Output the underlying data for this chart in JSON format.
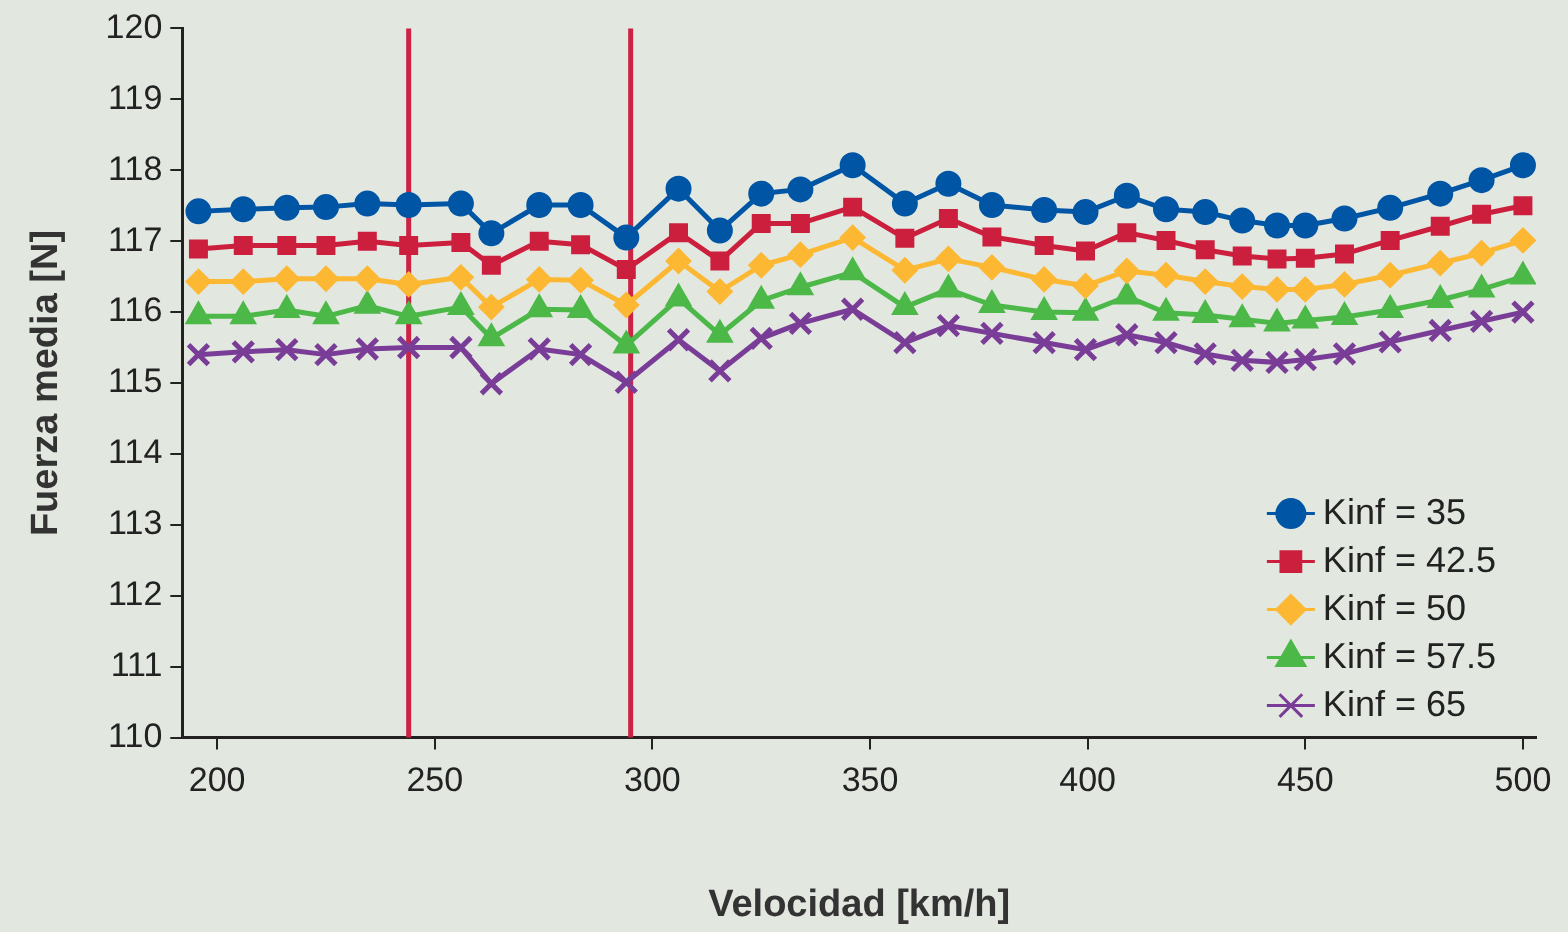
{
  "chart_data": {
    "type": "line",
    "xlabel": "Velocidad [km/h]",
    "ylabel": "Fuerza media [N]",
    "x": [
      195.7,
      206,
      216,
      225,
      234.5,
      244,
      256,
      263,
      274,
      283.5,
      294,
      306,
      315.5,
      325,
      334,
      346,
      358,
      368,
      378,
      390,
      399.5,
      409,
      418,
      427,
      435.5,
      443.5,
      450,
      459,
      469.5,
      481,
      490.5,
      500
    ],
    "xlim": [
      192,
      503
    ],
    "xticks": [
      200,
      250,
      300,
      350,
      400,
      450,
      500
    ],
    "ylim": [
      110,
      120
    ],
    "yticks": [
      110,
      111,
      112,
      113,
      114,
      115,
      116,
      117,
      118,
      119,
      120
    ],
    "grid": false,
    "legend": "bottom right",
    "line_style": "solid",
    "ref_lines": [
      {
        "axis": "x",
        "value": 244,
        "color": "#cc2244"
      },
      {
        "axis": "x",
        "value": 295,
        "color": "#cc2244"
      }
    ],
    "series": [
      {
        "name": "Kinf = 35",
        "color": "#0055a5",
        "marker": "circle",
        "values": [
          117.42,
          117.45,
          117.47,
          117.48,
          117.53,
          117.51,
          117.53,
          117.11,
          117.51,
          117.51,
          117.05,
          117.74,
          117.15,
          117.67,
          117.73,
          118.07,
          117.53,
          117.81,
          117.51,
          117.44,
          117.41,
          117.64,
          117.45,
          117.41,
          117.29,
          117.22,
          117.22,
          117.32,
          117.47,
          117.67,
          117.86,
          118.07
        ]
      },
      {
        "name": "Kinf = 42.5",
        "color": "#cc1f3e",
        "marker": "square",
        "values": [
          116.89,
          116.94,
          116.94,
          116.94,
          117.0,
          116.94,
          116.98,
          116.66,
          117.0,
          116.95,
          116.6,
          117.12,
          116.72,
          117.25,
          117.25,
          117.48,
          117.04,
          117.32,
          117.06,
          116.94,
          116.86,
          117.12,
          117.01,
          116.88,
          116.79,
          116.75,
          116.76,
          116.82,
          117.01,
          117.21,
          117.38,
          117.5
        ]
      },
      {
        "name": "Kinf = 50",
        "color": "#fdb833",
        "marker": "diamond",
        "values": [
          116.43,
          116.43,
          116.47,
          116.47,
          116.47,
          116.39,
          116.49,
          116.07,
          116.46,
          116.45,
          116.1,
          116.72,
          116.29,
          116.66,
          116.81,
          117.05,
          116.59,
          116.75,
          116.63,
          116.46,
          116.37,
          116.58,
          116.52,
          116.43,
          116.36,
          116.32,
          116.32,
          116.39,
          116.52,
          116.69,
          116.83,
          117.01
        ]
      },
      {
        "name": "Kinf = 57.5",
        "color": "#4cb848",
        "marker": "triangle",
        "values": [
          115.94,
          115.94,
          116.03,
          115.94,
          116.09,
          115.94,
          116.07,
          115.63,
          116.04,
          116.03,
          115.53,
          116.19,
          115.68,
          116.16,
          116.35,
          116.56,
          116.07,
          116.32,
          116.1,
          116.0,
          115.99,
          116.22,
          115.99,
          115.96,
          115.9,
          115.84,
          115.88,
          115.93,
          116.03,
          116.17,
          116.32,
          116.5
        ]
      },
      {
        "name": "Kinf = 65",
        "color": "#7a3d97",
        "marker": "cross",
        "values": [
          115.4,
          115.44,
          115.47,
          115.4,
          115.48,
          115.5,
          115.5,
          114.99,
          115.48,
          115.4,
          115.01,
          115.61,
          115.17,
          115.63,
          115.84,
          116.04,
          115.57,
          115.81,
          115.7,
          115.57,
          115.47,
          115.68,
          115.57,
          115.41,
          115.32,
          115.29,
          115.33,
          115.41,
          115.58,
          115.74,
          115.87,
          116.0
        ]
      }
    ]
  }
}
